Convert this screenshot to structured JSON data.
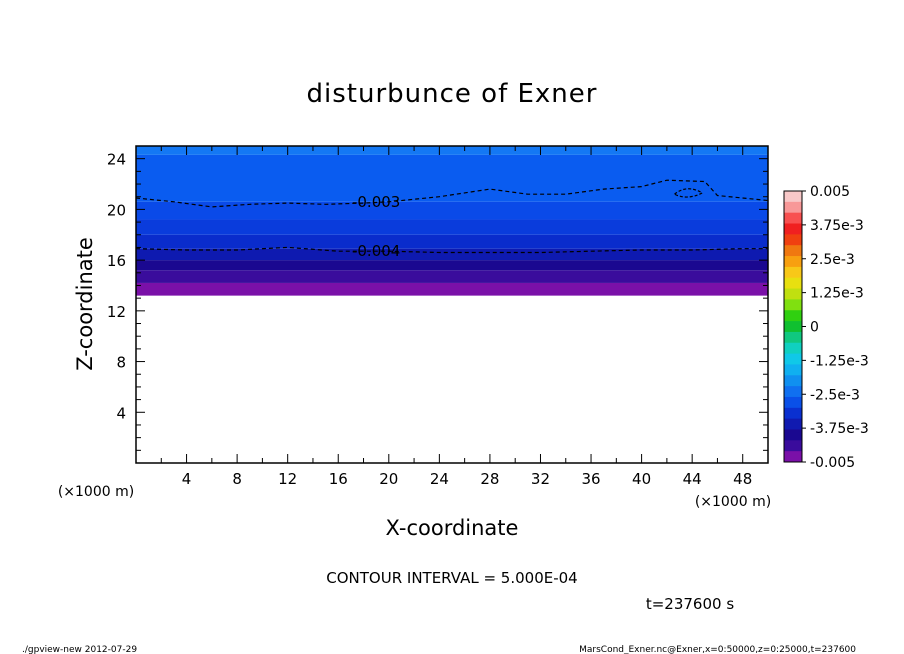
{
  "chart_data": {
    "type": "heatmap",
    "title": "disturbunce of Exner",
    "xlabel": "X-coordinate",
    "ylabel": "Z-coordinate",
    "x_unit": "(×1000 m)",
    "xlim": [
      0,
      50
    ],
    "ylim": [
      0,
      25
    ],
    "x_ticks": [
      4,
      8,
      12,
      16,
      20,
      24,
      28,
      32,
      36,
      40,
      44,
      48
    ],
    "y_ticks": [
      4,
      8,
      12,
      16,
      20,
      24
    ],
    "data_z_range": [
      13.2,
      25
    ],
    "bands": [
      {
        "z": [
          13.2,
          14.2
        ],
        "value": -0.005,
        "color": "#7a10a8"
      },
      {
        "z": [
          14.2,
          15.2
        ],
        "value": -0.0047,
        "color": "#3a0c9c"
      },
      {
        "z": [
          15.2,
          16.0
        ],
        "value": -0.0045,
        "color": "#1a0890"
      },
      {
        "z": [
          16.0,
          16.9
        ],
        "value": -0.0043,
        "color": "#0e1ab0"
      },
      {
        "z": [
          16.9,
          18.0
        ],
        "value": -0.004,
        "color": "#0a2ccc"
      },
      {
        "z": [
          18.0,
          19.2
        ],
        "value": -0.0037,
        "color": "#0a3cdc"
      },
      {
        "z": [
          19.2,
          20.6
        ],
        "value": -0.0033,
        "color": "#0a4ae8"
      },
      {
        "z": [
          20.6,
          24.3
        ],
        "value": -0.003,
        "color": "#0a5cf0"
      },
      {
        "z": [
          24.3,
          25.0
        ],
        "value": -0.0027,
        "color": "#1478f4"
      }
    ],
    "contours": [
      {
        "value": -0.003,
        "label": "-0.003",
        "points": [
          [
            0,
            20.9
          ],
          [
            3,
            20.6
          ],
          [
            6,
            20.2
          ],
          [
            9,
            20.4
          ],
          [
            12,
            20.5
          ],
          [
            15,
            20.4
          ],
          [
            18,
            20.5
          ],
          [
            20,
            20.6
          ],
          [
            24,
            21.0
          ],
          [
            28,
            21.6
          ],
          [
            31,
            21.2
          ],
          [
            34,
            21.2
          ],
          [
            37,
            21.6
          ],
          [
            40,
            21.8
          ],
          [
            42,
            22.3
          ],
          [
            45,
            22.2
          ],
          [
            46,
            21.1
          ],
          [
            50,
            20.7
          ]
        ]
      },
      {
        "value": -0.004,
        "label": "-0.004",
        "points": [
          [
            0,
            16.9
          ],
          [
            4,
            16.8
          ],
          [
            8,
            16.8
          ],
          [
            12,
            17.0
          ],
          [
            16,
            16.7
          ],
          [
            20,
            16.7
          ],
          [
            24,
            16.6
          ],
          [
            28,
            16.6
          ],
          [
            32,
            16.6
          ],
          [
            36,
            16.7
          ],
          [
            40,
            16.8
          ],
          [
            44,
            16.8
          ],
          [
            48,
            16.9
          ],
          [
            50,
            16.9
          ]
        ]
      }
    ],
    "colorbar": {
      "labels": [
        "0.005",
        "3.75e-3",
        "2.5e-3",
        "1.25e-3",
        "0",
        "-1.25e-3",
        "-2.5e-3",
        "-3.75e-3",
        "-0.005"
      ],
      "colors": [
        "#f8c8c8",
        "#f89898",
        "#f85050",
        "#f02020",
        "#f04010",
        "#f07810",
        "#f8a010",
        "#f8c818",
        "#e8e010",
        "#c0e010",
        "#80e010",
        "#30d010",
        "#10c030",
        "#10c880",
        "#10d0c0",
        "#10c8e8",
        "#10b0f0",
        "#1090f0",
        "#1070f0",
        "#0a50e8",
        "#0a30d0",
        "#101ab0",
        "#1a0890",
        "#3a0c9c",
        "#7a10a8"
      ]
    },
    "legend": "right"
  },
  "info": {
    "contour_interval": "CONTOUR INTERVAL = 5.000E-04",
    "time": "t=237600 s",
    "footer_left": "./gpview-new  2012-07-29",
    "footer_right": "MarsCond_Exner.nc@Exner,x=0:50000,z=0:25000,t=237600"
  }
}
